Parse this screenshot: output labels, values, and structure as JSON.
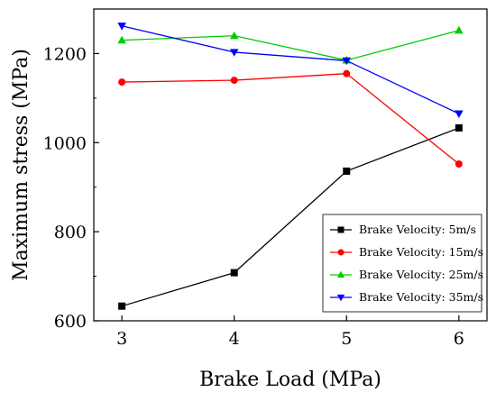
{
  "chart_data": {
    "type": "line",
    "xlabel": "Brake Load (MPa)",
    "ylabel": "Maximum stress (MPa)",
    "x": [
      3,
      4,
      5,
      6
    ],
    "xlim": [
      2.75,
      6.25
    ],
    "ylim": [
      600,
      1300
    ],
    "xticks": [
      "3",
      "4",
      "5",
      "6"
    ],
    "yticks": [
      "600",
      "800",
      "1000",
      "1200"
    ],
    "legend_position": "bottom-right",
    "grid": false,
    "series": [
      {
        "name": "Brake Velocity: 5m/s",
        "color": "#000000",
        "marker": "square",
        "values": [
          633,
          708,
          936,
          1033
        ]
      },
      {
        "name": "Brake Velocity: 15m/s",
        "color": "#ff0000",
        "marker": "circle",
        "values": [
          1136,
          1140,
          1155,
          952
        ]
      },
      {
        "name": "Brake Velocity: 25m/s",
        "color": "#00cc00",
        "marker": "triangle-up",
        "values": [
          1230,
          1240,
          1185,
          1252
        ]
      },
      {
        "name": "Brake Velocity: 35m/s",
        "color": "#0000ff",
        "marker": "triangle-down",
        "values": [
          1262,
          1203,
          1184,
          1065
        ]
      }
    ]
  }
}
